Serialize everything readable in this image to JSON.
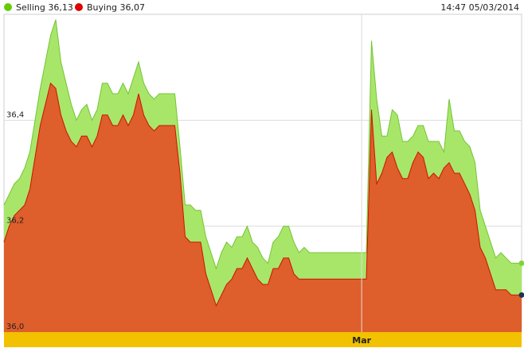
{
  "legend": [
    {
      "label": "Selling 36,13",
      "color": "#66cc00"
    },
    {
      "label": "Buying 36,07",
      "color": "#dd0000"
    }
  ],
  "timestamp": "14:47 05/03/2014",
  "colors": {
    "selling_fill": "#a8e66a",
    "selling_line": "#74c434",
    "buying_fill": "#de5e2c",
    "buying_line": "#cc1400",
    "grid": "#dcdcdc",
    "axis_band": "#f2c100",
    "last_sell_marker": "#7fd33a",
    "last_buy_marker": "#1f3350"
  },
  "chart_data": {
    "type": "area",
    "ylim": [
      36.0,
      36.6
    ],
    "xlim": [
      0,
      100
    ],
    "grid": true,
    "legend_position": "top-left",
    "y_ticks": [
      {
        "value": 36.0,
        "label": "36,0"
      },
      {
        "value": 36.2,
        "label": "36,2"
      },
      {
        "value": 36.4,
        "label": "36,4"
      }
    ],
    "x_ticks": [
      {
        "value": 69.1,
        "label": "Mar"
      }
    ],
    "series": [
      {
        "name": "Selling",
        "x": [
          0,
          1,
          2,
          3,
          4,
          5,
          6,
          7,
          8,
          9,
          10,
          11,
          12,
          13,
          14,
          15,
          16,
          17,
          18,
          19,
          20,
          21,
          22,
          23,
          24,
          25,
          26,
          27,
          28,
          29,
          30,
          31,
          32,
          33,
          34,
          35,
          36,
          37,
          38,
          39,
          40,
          41,
          42,
          43,
          44,
          45,
          46,
          47,
          48,
          49,
          50,
          51,
          52,
          53,
          54,
          55,
          56,
          57,
          58,
          59,
          60,
          61,
          62,
          63,
          64,
          65,
          66,
          67,
          68,
          69,
          70,
          71,
          72,
          73,
          74,
          75,
          76,
          77,
          78,
          79,
          80,
          81,
          82,
          83,
          84,
          85,
          86,
          87,
          88,
          89,
          90,
          91,
          92,
          93,
          94,
          95,
          96,
          97,
          98,
          99,
          100
        ],
        "y": [
          36.24,
          36.26,
          36.28,
          36.29,
          36.31,
          36.34,
          36.4,
          36.46,
          36.51,
          36.56,
          36.59,
          36.51,
          36.47,
          36.43,
          36.4,
          36.42,
          36.43,
          36.4,
          36.42,
          36.47,
          36.47,
          36.45,
          36.45,
          36.47,
          36.45,
          36.48,
          36.51,
          36.47,
          36.45,
          36.44,
          36.45,
          36.45,
          36.45,
          36.45,
          36.35,
          36.24,
          36.24,
          36.23,
          36.23,
          36.18,
          36.15,
          36.12,
          36.15,
          36.17,
          36.16,
          36.18,
          36.18,
          36.2,
          36.17,
          36.16,
          36.14,
          36.13,
          36.17,
          36.18,
          36.2,
          36.2,
          36.17,
          36.15,
          36.16,
          36.15,
          36.15,
          36.15,
          36.15,
          36.15,
          36.15,
          36.15,
          36.15,
          36.15,
          36.15,
          36.15,
          36.15,
          36.55,
          36.44,
          36.37,
          36.37,
          36.42,
          36.41,
          36.36,
          36.36,
          36.37,
          36.39,
          36.39,
          36.36,
          36.36,
          36.36,
          36.34,
          36.44,
          36.38,
          36.38,
          36.36,
          36.35,
          36.32,
          36.23,
          36.2,
          36.17,
          36.14,
          36.15,
          36.14,
          36.13,
          36.13,
          36.13
        ],
        "last_value": 36.13
      },
      {
        "name": "Buying",
        "x": [
          0,
          1,
          2,
          3,
          4,
          5,
          6,
          7,
          8,
          9,
          10,
          11,
          12,
          13,
          14,
          15,
          16,
          17,
          18,
          19,
          20,
          21,
          22,
          23,
          24,
          25,
          26,
          27,
          28,
          29,
          30,
          31,
          32,
          33,
          34,
          35,
          36,
          37,
          38,
          39,
          40,
          41,
          42,
          43,
          44,
          45,
          46,
          47,
          48,
          49,
          50,
          51,
          52,
          53,
          54,
          55,
          56,
          57,
          58,
          59,
          60,
          61,
          62,
          63,
          64,
          65,
          66,
          67,
          68,
          69,
          70,
          71,
          72,
          73,
          74,
          75,
          76,
          77,
          78,
          79,
          80,
          81,
          82,
          83,
          84,
          85,
          86,
          87,
          88,
          89,
          90,
          91,
          92,
          93,
          94,
          95,
          96,
          97,
          98,
          99,
          100
        ],
        "y": [
          36.17,
          36.2,
          36.22,
          36.23,
          36.24,
          36.27,
          36.33,
          36.39,
          36.43,
          36.47,
          36.46,
          36.41,
          36.38,
          36.36,
          36.35,
          36.37,
          36.37,
          36.35,
          36.37,
          36.41,
          36.41,
          36.39,
          36.39,
          36.41,
          36.39,
          36.41,
          36.45,
          36.41,
          36.39,
          36.38,
          36.39,
          36.39,
          36.39,
          36.39,
          36.3,
          36.18,
          36.17,
          36.17,
          36.17,
          36.11,
          36.08,
          36.05,
          36.07,
          36.09,
          36.1,
          36.12,
          36.12,
          36.14,
          36.12,
          36.1,
          36.09,
          36.09,
          36.12,
          36.12,
          36.14,
          36.14,
          36.11,
          36.1,
          36.1,
          36.1,
          36.1,
          36.1,
          36.1,
          36.1,
          36.1,
          36.1,
          36.1,
          36.1,
          36.1,
          36.1,
          36.1,
          36.42,
          36.28,
          36.3,
          36.33,
          36.34,
          36.31,
          36.29,
          36.29,
          36.32,
          36.34,
          36.33,
          36.29,
          36.3,
          36.29,
          36.31,
          36.32,
          36.3,
          36.3,
          36.28,
          36.26,
          36.23,
          36.16,
          36.14,
          36.11,
          36.08,
          36.08,
          36.08,
          36.07,
          36.07,
          36.07
        ],
        "last_value": 36.07
      }
    ]
  }
}
